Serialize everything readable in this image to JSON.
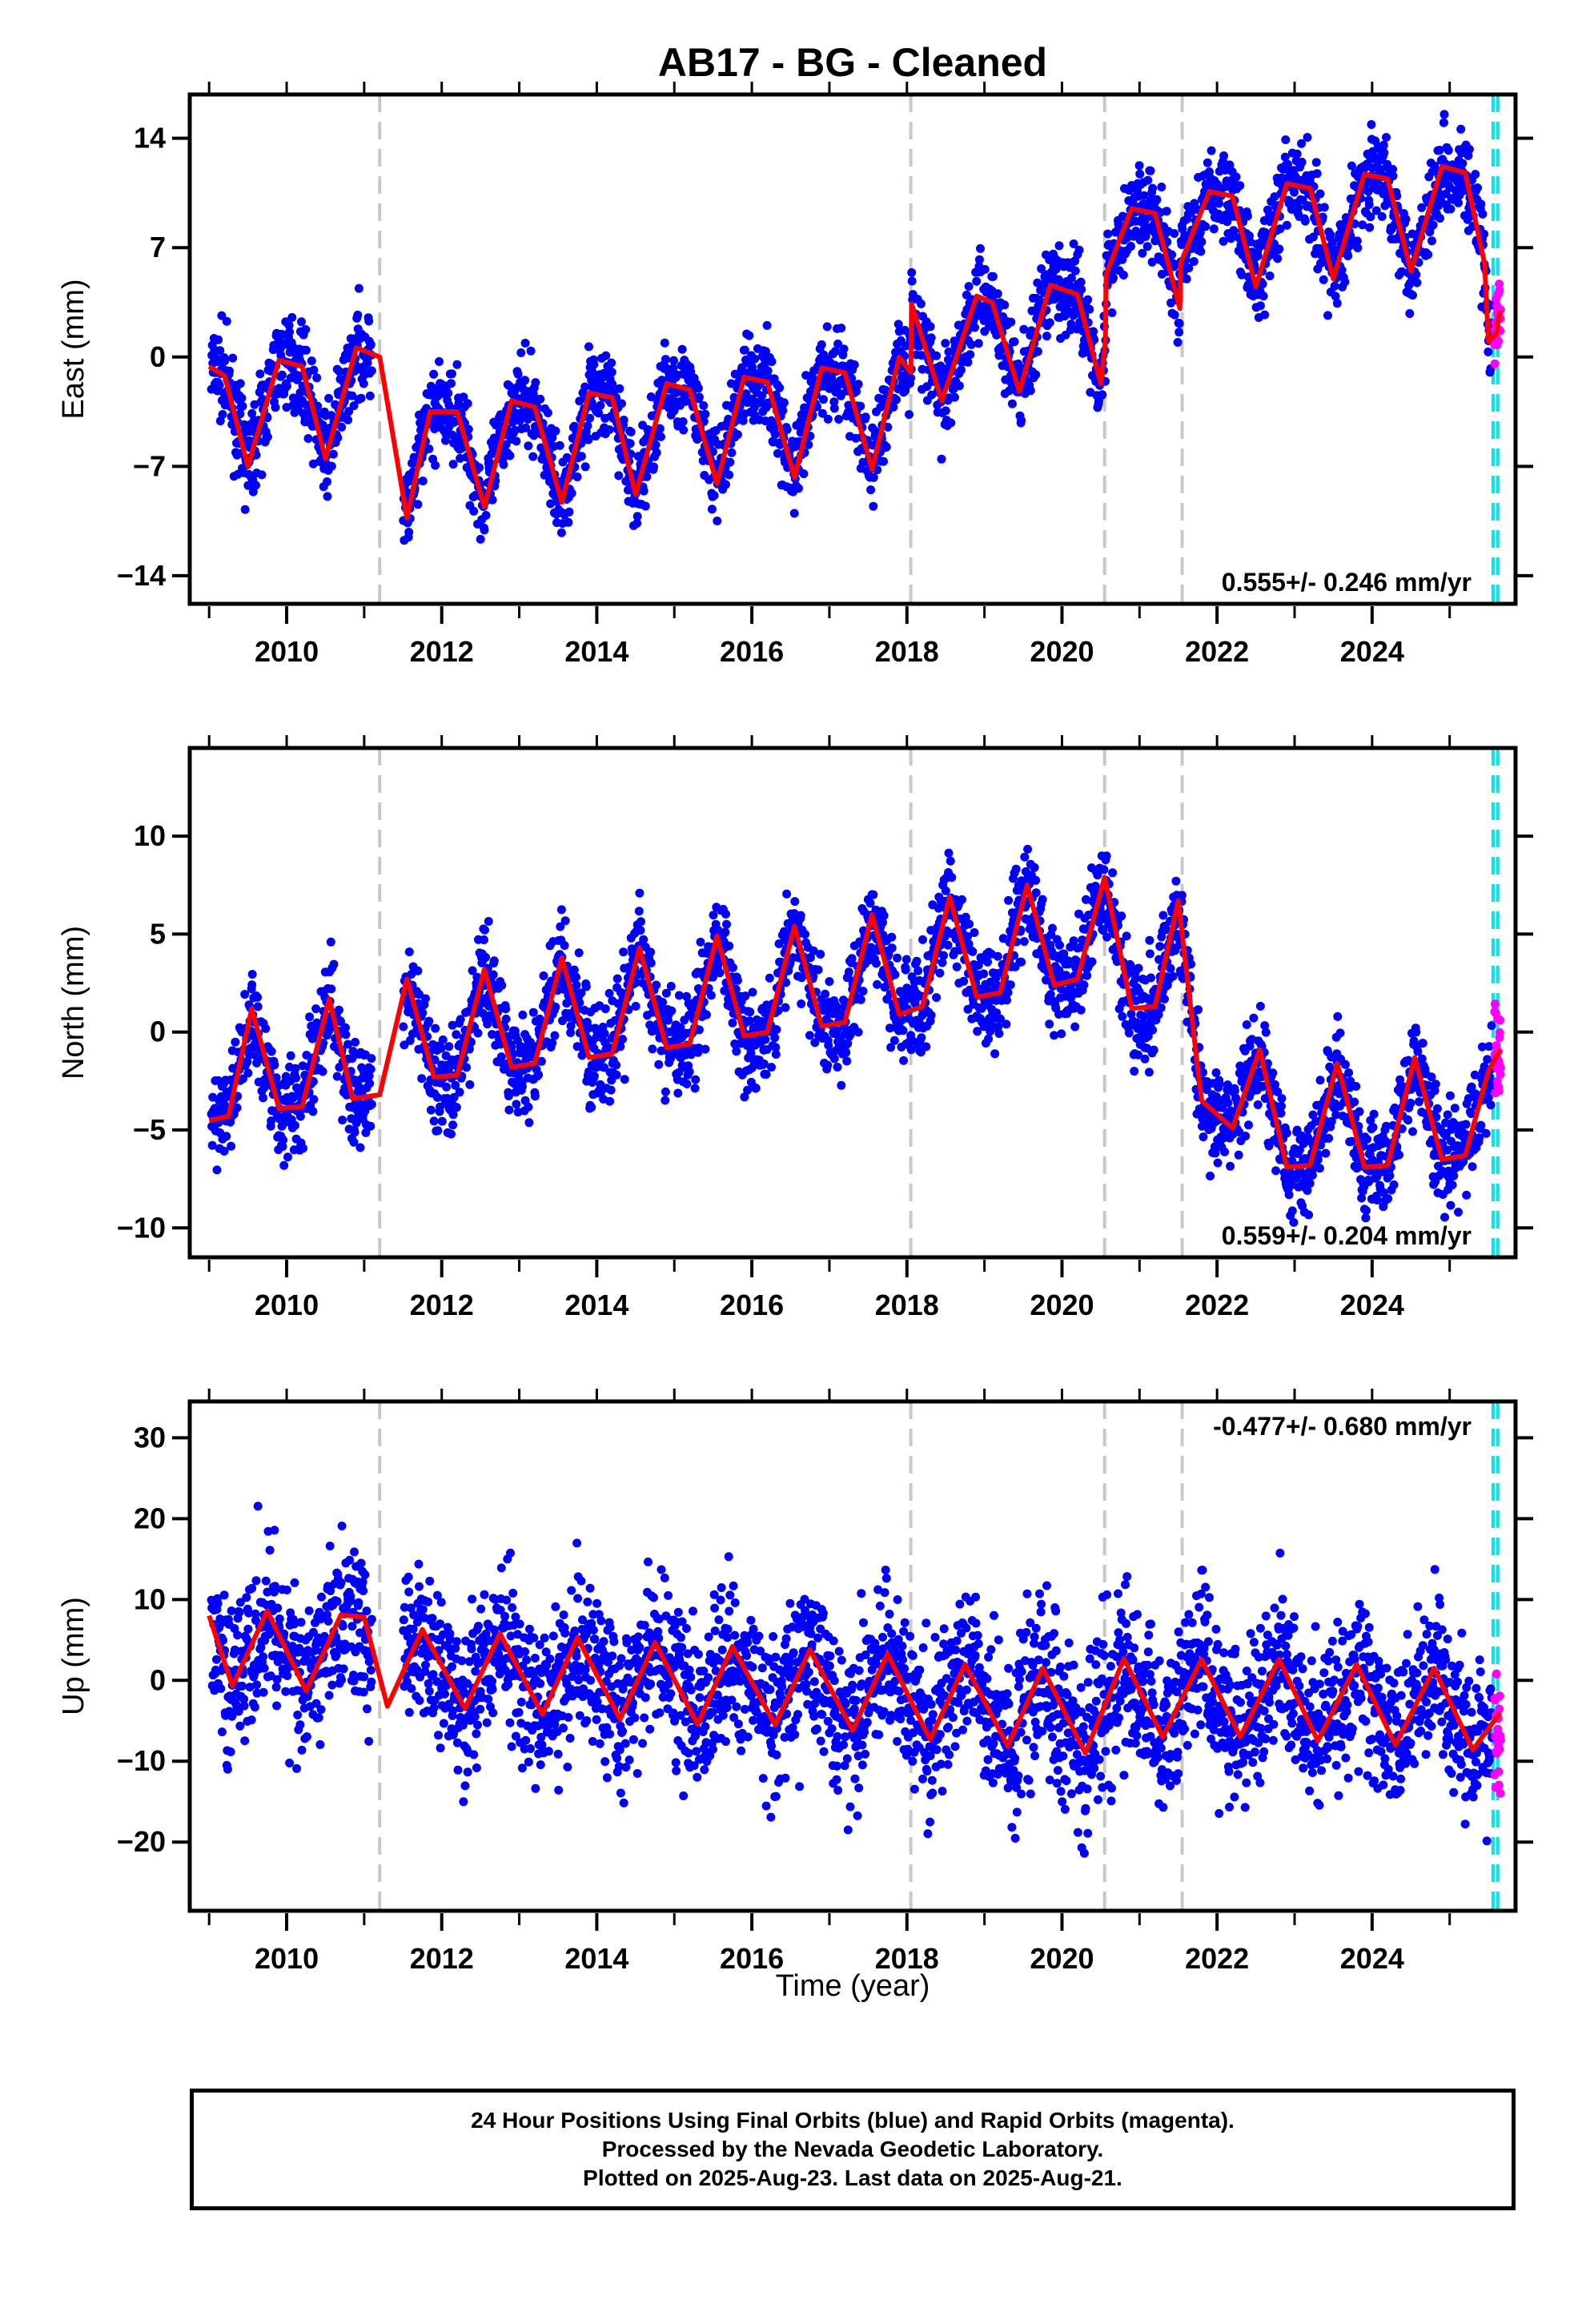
{
  "title": "AB17  - BG - Cleaned",
  "colors": {
    "final_orbits": "#0000ff",
    "rapid_orbits": "#ff00ff",
    "model": "#ff0000",
    "offset_lines": "#c8c8c8",
    "last_data_lines": "#00e5ee"
  },
  "chart_data": [
    {
      "type": "scatter",
      "xlabel": "",
      "ylabel": "East (mm)",
      "xlim": [
        2008.75,
        2025.85
      ],
      "ylim": [
        -15.8,
        16.8
      ],
      "yticks": [
        -14,
        -7,
        0,
        7,
        14
      ],
      "xticks": [
        2010,
        2012,
        2014,
        2016,
        2018,
        2020,
        2022,
        2024
      ],
      "rate_label": "0.555+/- 0.246 mm/yr",
      "offset_lines": [
        2011.2,
        2018.05,
        2020.55,
        2021.55
      ],
      "last_data_lines": [
        2025.56,
        2025.62
      ],
      "model": [
        [
          2009.0,
          -0.6
        ],
        [
          2009.2,
          -1.2
        ],
        [
          2009.5,
          -7.0
        ],
        [
          2009.9,
          -0.2
        ],
        [
          2010.2,
          -0.6
        ],
        [
          2010.5,
          -6.5
        ],
        [
          2010.9,
          0.6
        ],
        [
          2011.2,
          0.0
        ],
        [
          2011.55,
          -10.3
        ],
        [
          2011.85,
          -3.5
        ],
        [
          2012.2,
          -3.5
        ],
        [
          2012.55,
          -9.6
        ],
        [
          2012.9,
          -2.8
        ],
        [
          2013.2,
          -3.2
        ],
        [
          2013.55,
          -9.3
        ],
        [
          2013.9,
          -2.3
        ],
        [
          2014.2,
          -2.6
        ],
        [
          2014.5,
          -8.8
        ],
        [
          2014.9,
          -1.7
        ],
        [
          2015.2,
          -2.1
        ],
        [
          2015.55,
          -8.1
        ],
        [
          2015.9,
          -1.3
        ],
        [
          2016.2,
          -1.6
        ],
        [
          2016.55,
          -7.7
        ],
        [
          2016.9,
          -0.7
        ],
        [
          2017.2,
          -1.0
        ],
        [
          2017.55,
          -7.2
        ],
        [
          2017.9,
          0.0
        ],
        [
          2018.05,
          -1.0
        ],
        [
          2018.06,
          3.4
        ],
        [
          2018.45,
          -2.8
        ],
        [
          2018.9,
          3.9
        ],
        [
          2019.1,
          3.5
        ],
        [
          2019.45,
          -2.2
        ],
        [
          2019.85,
          4.6
        ],
        [
          2020.2,
          4.0
        ],
        [
          2020.5,
          -1.7
        ],
        [
          2020.56,
          1.0
        ],
        [
          2020.57,
          5.3
        ],
        [
          2020.9,
          9.5
        ],
        [
          2021.2,
          9.2
        ],
        [
          2021.52,
          3.1
        ],
        [
          2021.53,
          6.0
        ],
        [
          2021.9,
          10.6
        ],
        [
          2022.2,
          10.3
        ],
        [
          2022.5,
          4.5
        ],
        [
          2022.9,
          11.1
        ],
        [
          2023.2,
          10.8
        ],
        [
          2023.5,
          5.0
        ],
        [
          2023.9,
          11.7
        ],
        [
          2024.2,
          11.4
        ],
        [
          2024.5,
          5.5
        ],
        [
          2024.9,
          12.2
        ],
        [
          2025.2,
          11.8
        ],
        [
          2025.45,
          6.0
        ],
        [
          2025.5,
          1.0
        ],
        [
          2025.6,
          1.5
        ],
        [
          2025.65,
          3.0
        ]
      ]
    },
    {
      "type": "scatter",
      "xlabel": "",
      "ylabel": "North (mm)",
      "xlim": [
        2008.75,
        2025.85
      ],
      "ylim": [
        -11.5,
        14.5
      ],
      "yticks": [
        -10,
        -5,
        0,
        5,
        10
      ],
      "xticks": [
        2010,
        2012,
        2014,
        2016,
        2018,
        2020,
        2022,
        2024
      ],
      "rate_label": "0.559+/- 0.204 mm/yr",
      "offset_lines": [
        2011.2,
        2018.05,
        2020.55,
        2021.55
      ],
      "last_data_lines": [
        2025.56,
        2025.62
      ],
      "model": [
        [
          2009.0,
          -4.5
        ],
        [
          2009.25,
          -4.3
        ],
        [
          2009.55,
          1.2
        ],
        [
          2009.9,
          -3.9
        ],
        [
          2010.2,
          -3.8
        ],
        [
          2010.55,
          1.7
        ],
        [
          2010.85,
          -3.4
        ],
        [
          2011.2,
          -3.2
        ],
        [
          2011.55,
          2.7
        ],
        [
          2011.9,
          -2.3
        ],
        [
          2012.2,
          -2.2
        ],
        [
          2012.55,
          3.2
        ],
        [
          2012.9,
          -1.8
        ],
        [
          2013.2,
          -1.6
        ],
        [
          2013.55,
          3.8
        ],
        [
          2013.9,
          -1.3
        ],
        [
          2014.2,
          -1.1
        ],
        [
          2014.55,
          4.3
        ],
        [
          2014.9,
          -0.8
        ],
        [
          2015.2,
          -0.6
        ],
        [
          2015.55,
          4.9
        ],
        [
          2015.9,
          -0.2
        ],
        [
          2016.2,
          0.0
        ],
        [
          2016.55,
          5.4
        ],
        [
          2016.9,
          0.3
        ],
        [
          2017.2,
          0.5
        ],
        [
          2017.55,
          6.0
        ],
        [
          2017.9,
          0.9
        ],
        [
          2018.2,
          1.3
        ],
        [
          2018.55,
          6.9
        ],
        [
          2018.9,
          1.8
        ],
        [
          2019.2,
          2.0
        ],
        [
          2019.55,
          7.5
        ],
        [
          2019.9,
          2.4
        ],
        [
          2020.2,
          2.7
        ],
        [
          2020.55,
          7.9
        ],
        [
          2020.9,
          1.2
        ],
        [
          2021.2,
          1.3
        ],
        [
          2021.5,
          6.7
        ],
        [
          2021.8,
          -3.5
        ],
        [
          2022.2,
          -4.9
        ],
        [
          2022.55,
          -0.9
        ],
        [
          2022.9,
          -6.9
        ],
        [
          2023.2,
          -6.8
        ],
        [
          2023.55,
          -1.6
        ],
        [
          2023.9,
          -6.9
        ],
        [
          2024.2,
          -6.8
        ],
        [
          2024.55,
          -1.3
        ],
        [
          2024.9,
          -6.5
        ],
        [
          2025.2,
          -6.3
        ],
        [
          2025.5,
          -2.0
        ],
        [
          2025.65,
          -0.9
        ]
      ]
    },
    {
      "type": "scatter",
      "xlabel": "Time (year)",
      "ylabel": "Up (mm)",
      "xlim": [
        2008.75,
        2025.85
      ],
      "ylim": [
        -28.5,
        34.5
      ],
      "yticks": [
        -20,
        -10,
        0,
        10,
        20,
        30
      ],
      "xticks": [
        2010,
        2012,
        2014,
        2016,
        2018,
        2020,
        2022,
        2024
      ],
      "rate_label": "-0.477+/- 0.680 mm/yr",
      "offset_lines": [
        2011.2,
        2018.05,
        2020.55,
        2021.55
      ],
      "last_data_lines": [
        2025.56,
        2025.62
      ],
      "model": [
        [
          2009.0,
          8.0
        ],
        [
          2009.3,
          -0.7
        ],
        [
          2009.75,
          8.6
        ],
        [
          2010.25,
          -1.3
        ],
        [
          2010.7,
          8.1
        ],
        [
          2011.0,
          7.8
        ],
        [
          2011.3,
          -3.2
        ],
        [
          2011.75,
          6.3
        ],
        [
          2012.3,
          -3.5
        ],
        [
          2012.75,
          5.8
        ],
        [
          2013.3,
          -4.2
        ],
        [
          2013.75,
          5.3
        ],
        [
          2014.3,
          -4.8
        ],
        [
          2014.75,
          4.7
        ],
        [
          2015.3,
          -5.4
        ],
        [
          2015.75,
          4.2
        ],
        [
          2016.3,
          -5.5
        ],
        [
          2016.75,
          3.8
        ],
        [
          2017.3,
          -6.2
        ],
        [
          2017.75,
          3.3
        ],
        [
          2018.3,
          -7.3
        ],
        [
          2018.75,
          2.0
        ],
        [
          2019.3,
          -8.1
        ],
        [
          2019.75,
          1.5
        ],
        [
          2020.3,
          -9.0
        ],
        [
          2020.8,
          2.7
        ],
        [
          2021.3,
          -7.0
        ],
        [
          2021.8,
          2.6
        ],
        [
          2022.3,
          -7.0
        ],
        [
          2022.8,
          2.6
        ],
        [
          2023.3,
          -7.5
        ],
        [
          2023.8,
          2.0
        ],
        [
          2024.3,
          -8.0
        ],
        [
          2024.8,
          1.5
        ],
        [
          2025.3,
          -8.6
        ],
        [
          2025.65,
          -4.0
        ]
      ]
    }
  ],
  "x_axis": {
    "tick_labels": [
      "2010",
      "2012",
      "2014",
      "2016",
      "2018",
      "2020",
      "2022",
      "2024"
    ],
    "label": "Time (year)"
  },
  "panels": [
    {
      "ylabel": "East (mm)",
      "rate": "0.555+/- 0.246 mm/yr",
      "tick_labels": [
        "14",
        "7",
        "0",
        "−7",
        "−14"
      ]
    },
    {
      "ylabel": "North (mm)",
      "rate": "0.559+/- 0.204 mm/yr",
      "tick_labels": [
        "10",
        "5",
        "0",
        "−5",
        "−10"
      ]
    },
    {
      "ylabel": "Up (mm)",
      "rate": "-0.477+/- 0.680 mm/yr",
      "tick_labels": [
        "30",
        "20",
        "10",
        "0",
        "−10",
        "−20"
      ]
    }
  ],
  "caption": {
    "line1": "24 Hour Positions Using Final Orbits (blue) and Rapid Orbits (magenta).",
    "line2": "Processed by the Nevada Geodetic Laboratory.",
    "line3": "Plotted on 2025-Aug-23. Last data on 2025-Aug-21."
  }
}
